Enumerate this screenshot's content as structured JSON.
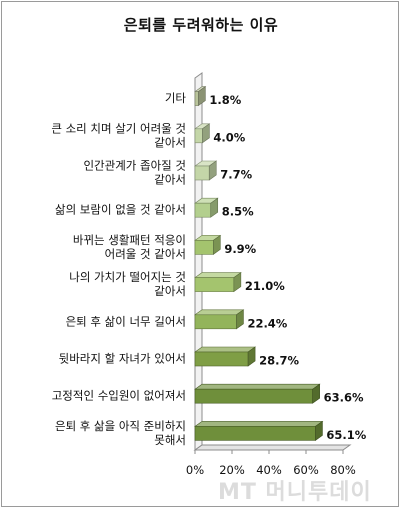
{
  "chart_data": {
    "type": "bar",
    "orientation": "horizontal",
    "title": "은퇴를 두려워하는 이유",
    "categories": [
      [
        "기타"
      ],
      [
        "큰 소리 치며 살기 어려울 것",
        "같아서"
      ],
      [
        "인간관계가 좁아질 것",
        "같아서"
      ],
      [
        "삶의 보람이 없을 것 같아서"
      ],
      [
        "바뀌는 생활패턴 적응이",
        "어려울 것 같아서"
      ],
      [
        "나의 가치가 떨어지는 것",
        "같아서"
      ],
      [
        "은퇴 후 삶이 너무 길어서"
      ],
      [
        "뒷바라지 할 자녀가 있어서"
      ],
      [
        "고정적인 수입원이 없어져서"
      ],
      [
        "은퇴 후 삶을 아직 준비하지",
        "못해서"
      ]
    ],
    "values": [
      1.8,
      4.0,
      7.7,
      8.5,
      9.9,
      21.0,
      22.4,
      28.7,
      63.6,
      65.1
    ],
    "value_labels": [
      "1.8%",
      "4.0%",
      "7.7%",
      "8.5%",
      "9.9%",
      "21.0%",
      "22.4%",
      "28.7%",
      "63.6%",
      "65.1%"
    ],
    "bar_colors": [
      "#b9c49b",
      "#c4d6a8",
      "#c4d6a8",
      "#b3cf8e",
      "#a4c46e",
      "#a4c46e",
      "#93b45b",
      "#7f9e45",
      "#6f8f3b",
      "#6f8f3b"
    ],
    "xlim": [
      0,
      80
    ],
    "x_ticks": [
      "0%",
      "20%",
      "40%",
      "60%",
      "80%"
    ],
    "grid": false,
    "legend": "none"
  },
  "watermark": "MT 머니투데이"
}
